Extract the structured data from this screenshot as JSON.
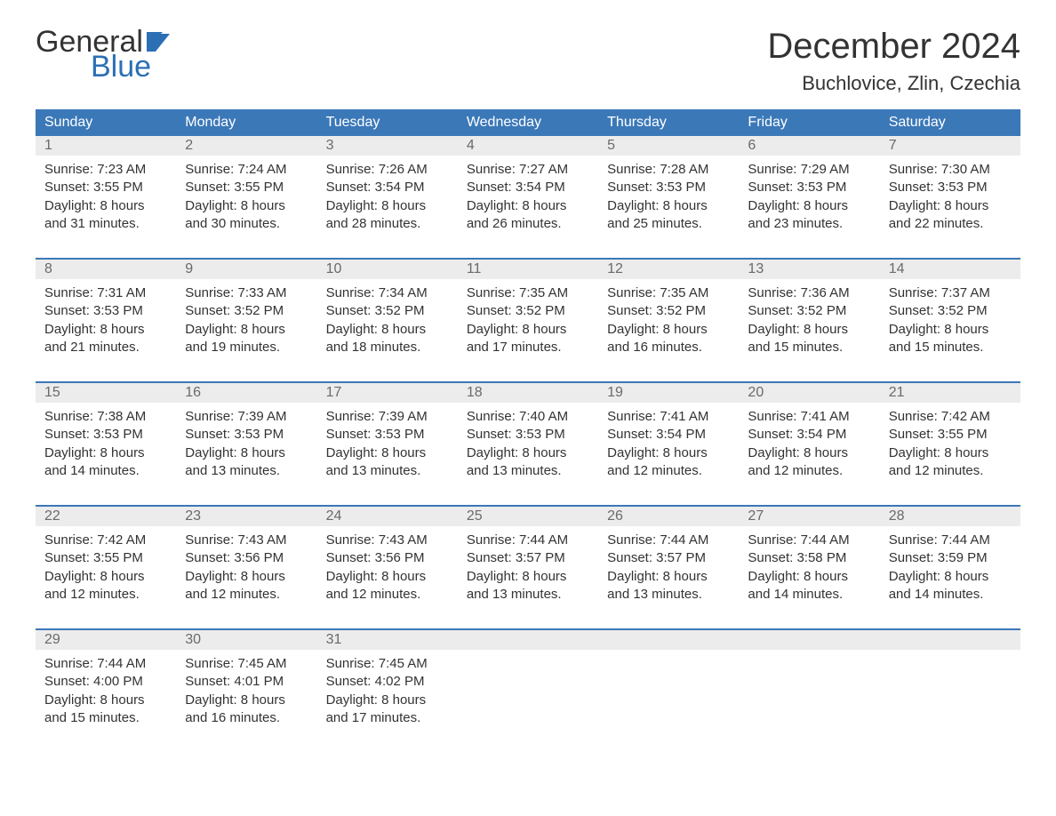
{
  "logo": {
    "text_top": "General",
    "text_bottom": "Blue",
    "top_color": "#333333",
    "bottom_color": "#2c6fb5",
    "flag_color": "#2c6fb5"
  },
  "title": {
    "month_year": "December 2024",
    "location": "Buchlovice, Zlin, Czechia",
    "title_fontsize": 40,
    "location_fontsize": 22
  },
  "colors": {
    "header_bg": "#3b78b8",
    "header_text": "#ffffff",
    "daynum_bg": "#ececec",
    "daynum_text": "#6a6a6a",
    "body_text": "#333333",
    "week_border": "#3b78b8",
    "page_bg": "#ffffff"
  },
  "daynames": [
    "Sunday",
    "Monday",
    "Tuesday",
    "Wednesday",
    "Thursday",
    "Friday",
    "Saturday"
  ],
  "weeks": [
    [
      {
        "day": "1",
        "sunrise": "Sunrise: 7:23 AM",
        "sunset": "Sunset: 3:55 PM",
        "dl1": "Daylight: 8 hours",
        "dl2": "and 31 minutes."
      },
      {
        "day": "2",
        "sunrise": "Sunrise: 7:24 AM",
        "sunset": "Sunset: 3:55 PM",
        "dl1": "Daylight: 8 hours",
        "dl2": "and 30 minutes."
      },
      {
        "day": "3",
        "sunrise": "Sunrise: 7:26 AM",
        "sunset": "Sunset: 3:54 PM",
        "dl1": "Daylight: 8 hours",
        "dl2": "and 28 minutes."
      },
      {
        "day": "4",
        "sunrise": "Sunrise: 7:27 AM",
        "sunset": "Sunset: 3:54 PM",
        "dl1": "Daylight: 8 hours",
        "dl2": "and 26 minutes."
      },
      {
        "day": "5",
        "sunrise": "Sunrise: 7:28 AM",
        "sunset": "Sunset: 3:53 PM",
        "dl1": "Daylight: 8 hours",
        "dl2": "and 25 minutes."
      },
      {
        "day": "6",
        "sunrise": "Sunrise: 7:29 AM",
        "sunset": "Sunset: 3:53 PM",
        "dl1": "Daylight: 8 hours",
        "dl2": "and 23 minutes."
      },
      {
        "day": "7",
        "sunrise": "Sunrise: 7:30 AM",
        "sunset": "Sunset: 3:53 PM",
        "dl1": "Daylight: 8 hours",
        "dl2": "and 22 minutes."
      }
    ],
    [
      {
        "day": "8",
        "sunrise": "Sunrise: 7:31 AM",
        "sunset": "Sunset: 3:53 PM",
        "dl1": "Daylight: 8 hours",
        "dl2": "and 21 minutes."
      },
      {
        "day": "9",
        "sunrise": "Sunrise: 7:33 AM",
        "sunset": "Sunset: 3:52 PM",
        "dl1": "Daylight: 8 hours",
        "dl2": "and 19 minutes."
      },
      {
        "day": "10",
        "sunrise": "Sunrise: 7:34 AM",
        "sunset": "Sunset: 3:52 PM",
        "dl1": "Daylight: 8 hours",
        "dl2": "and 18 minutes."
      },
      {
        "day": "11",
        "sunrise": "Sunrise: 7:35 AM",
        "sunset": "Sunset: 3:52 PM",
        "dl1": "Daylight: 8 hours",
        "dl2": "and 17 minutes."
      },
      {
        "day": "12",
        "sunrise": "Sunrise: 7:35 AM",
        "sunset": "Sunset: 3:52 PM",
        "dl1": "Daylight: 8 hours",
        "dl2": "and 16 minutes."
      },
      {
        "day": "13",
        "sunrise": "Sunrise: 7:36 AM",
        "sunset": "Sunset: 3:52 PM",
        "dl1": "Daylight: 8 hours",
        "dl2": "and 15 minutes."
      },
      {
        "day": "14",
        "sunrise": "Sunrise: 7:37 AM",
        "sunset": "Sunset: 3:52 PM",
        "dl1": "Daylight: 8 hours",
        "dl2": "and 15 minutes."
      }
    ],
    [
      {
        "day": "15",
        "sunrise": "Sunrise: 7:38 AM",
        "sunset": "Sunset: 3:53 PM",
        "dl1": "Daylight: 8 hours",
        "dl2": "and 14 minutes."
      },
      {
        "day": "16",
        "sunrise": "Sunrise: 7:39 AM",
        "sunset": "Sunset: 3:53 PM",
        "dl1": "Daylight: 8 hours",
        "dl2": "and 13 minutes."
      },
      {
        "day": "17",
        "sunrise": "Sunrise: 7:39 AM",
        "sunset": "Sunset: 3:53 PM",
        "dl1": "Daylight: 8 hours",
        "dl2": "and 13 minutes."
      },
      {
        "day": "18",
        "sunrise": "Sunrise: 7:40 AM",
        "sunset": "Sunset: 3:53 PM",
        "dl1": "Daylight: 8 hours",
        "dl2": "and 13 minutes."
      },
      {
        "day": "19",
        "sunrise": "Sunrise: 7:41 AM",
        "sunset": "Sunset: 3:54 PM",
        "dl1": "Daylight: 8 hours",
        "dl2": "and 12 minutes."
      },
      {
        "day": "20",
        "sunrise": "Sunrise: 7:41 AM",
        "sunset": "Sunset: 3:54 PM",
        "dl1": "Daylight: 8 hours",
        "dl2": "and 12 minutes."
      },
      {
        "day": "21",
        "sunrise": "Sunrise: 7:42 AM",
        "sunset": "Sunset: 3:55 PM",
        "dl1": "Daylight: 8 hours",
        "dl2": "and 12 minutes."
      }
    ],
    [
      {
        "day": "22",
        "sunrise": "Sunrise: 7:42 AM",
        "sunset": "Sunset: 3:55 PM",
        "dl1": "Daylight: 8 hours",
        "dl2": "and 12 minutes."
      },
      {
        "day": "23",
        "sunrise": "Sunrise: 7:43 AM",
        "sunset": "Sunset: 3:56 PM",
        "dl1": "Daylight: 8 hours",
        "dl2": "and 12 minutes."
      },
      {
        "day": "24",
        "sunrise": "Sunrise: 7:43 AM",
        "sunset": "Sunset: 3:56 PM",
        "dl1": "Daylight: 8 hours",
        "dl2": "and 12 minutes."
      },
      {
        "day": "25",
        "sunrise": "Sunrise: 7:44 AM",
        "sunset": "Sunset: 3:57 PM",
        "dl1": "Daylight: 8 hours",
        "dl2": "and 13 minutes."
      },
      {
        "day": "26",
        "sunrise": "Sunrise: 7:44 AM",
        "sunset": "Sunset: 3:57 PM",
        "dl1": "Daylight: 8 hours",
        "dl2": "and 13 minutes."
      },
      {
        "day": "27",
        "sunrise": "Sunrise: 7:44 AM",
        "sunset": "Sunset: 3:58 PM",
        "dl1": "Daylight: 8 hours",
        "dl2": "and 14 minutes."
      },
      {
        "day": "28",
        "sunrise": "Sunrise: 7:44 AM",
        "sunset": "Sunset: 3:59 PM",
        "dl1": "Daylight: 8 hours",
        "dl2": "and 14 minutes."
      }
    ],
    [
      {
        "day": "29",
        "sunrise": "Sunrise: 7:44 AM",
        "sunset": "Sunset: 4:00 PM",
        "dl1": "Daylight: 8 hours",
        "dl2": "and 15 minutes."
      },
      {
        "day": "30",
        "sunrise": "Sunrise: 7:45 AM",
        "sunset": "Sunset: 4:01 PM",
        "dl1": "Daylight: 8 hours",
        "dl2": "and 16 minutes."
      },
      {
        "day": "31",
        "sunrise": "Sunrise: 7:45 AM",
        "sunset": "Sunset: 4:02 PM",
        "dl1": "Daylight: 8 hours",
        "dl2": "and 17 minutes."
      },
      null,
      null,
      null,
      null
    ]
  ]
}
